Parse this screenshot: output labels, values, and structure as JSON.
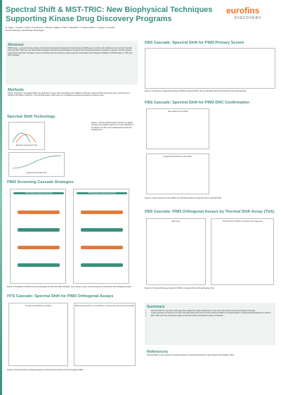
{
  "header": {
    "title_line1": "Spectral Shift & MST-TRIC: New Biophysical Techniques",
    "title_line2": "Supporting Kinase Drug Discovery Programs",
    "authors": "M. Sügelt, J. Günther, A. Bocer, B. Ferdinand, T. Schmidt, P. Walton, E. Mott, P. Baradaram, C. Scheib-Gandet, C. Legrosa, S. Forreider",
    "affiliations": "Eurofins Discovery | NanoTemper Technologies",
    "logo": "eurofins",
    "logo_sub": "DISCOVERY"
  },
  "abstract": {
    "title": "Abstract",
    "text": "PIM3 kinase, a serine/threonine kinase of the calcium/calmodulin-dependent protein kinase (CAMK) group, controls cell proliferation and survival. Spectral Shift and MST-TRIC are new biophysical techniques that allow characterization of fragment and compound binding to kinases in solution, with low sample consumption and high throughput. Here we describe primary screening, dose-response confirmation and orthogonal validation of PIM3 binders in HTS and FBS cascades."
  },
  "methods": {
    "title": "Methods",
    "text": "Protein production: His-tagged PIM3 was produced in insect cells and labeled with a RED-tris-NTA dye. Spectral Shift experiments were performed on a Dianthus NT.23Pico instrument. Thermal shift assays (TSA) were run in parallel as orthogonal readout for fragment hits."
  },
  "tech": {
    "title": "Spectral Shift Technology",
    "xlabel": "Emission wavelength (nm)",
    "xlabel2": "Ligand concentration (M)",
    "caption": "Figure 1. Spectral shift principle: binding of a ligand changes the emission spectrum of a dye attached to the target; the ratio of two wavelengths reports the binding event."
  },
  "pim3": {
    "title": "PIM3 Screening Cascade Strategies",
    "box1": "HTS (High-throughput Screening)",
    "box2": "FBS (Fragment-based Screening)",
    "caption": "Figure 2. Strategies of PIM3 screening campaigns for HTS and FBS cascades, from primary screen to dose-response confirmation and orthogonal assays."
  },
  "hts": {
    "title": "HTS Cascade: Spectral Shift for PIM3 Orthogonal Assays",
    "chart1": "Frequency Distribution of Ratios",
    "chart2": "Melting Temperature / Kd of PIM3 in Complex with Screened Compounds",
    "caption": "Figure 3. Spectral shift for orthogonal assays and binding Kd ranking of HTS hits against PIM3."
  },
  "fbs1": {
    "title": "FBS Cascade: Spectral Shift for PIM3 Primary Screen",
    "caption": "Figure 4. Screening of fragments binding to PIM3 by Spectral Shift; hits are identified above the threshold of the ratio deviation."
  },
  "fbs2": {
    "title": "FBS Cascade: Spectral Shift for PIM3 DRC Confirmation",
    "chart1": "Dose Response of PIM3",
    "chart2": "Frequency Distribution of Kd Values",
    "caption": "Figure 5. Dose-response curves (DRC) and Kd determination of fragment hits by Spectral Shift."
  },
  "fbs3": {
    "title": "FBS Cascade: PIM3 Orthogonal Assays by Thermal Shift Assay (TSA)",
    "chart1": "Melt curve",
    "chart2": "Thermal Shift of PIM3 in Complex with Fragments",
    "caption": "Figure 6. Thermal shift assay results for PIM3 in complex with confirmed fragment hits."
  },
  "summary": {
    "title": "Summary",
    "items": [
      "Spectral Shift is a sensitive technology that enabled the rapid identification of hits from both small molecule and fragment libraries.",
      "It was important to implement an easy and rapid assay that would monitor binding of PIM3 to its natural ligand, compounds and fragments in solution.",
      "MST-TRIC and TSA orthogonal assays confirmed binders and allowed ranking of affinities."
    ]
  },
  "references": {
    "title": "References",
    "text": "Spectral Shift: a new method for characterization of molecular interactions. NanoTemper Technologies, 2022."
  }
}
